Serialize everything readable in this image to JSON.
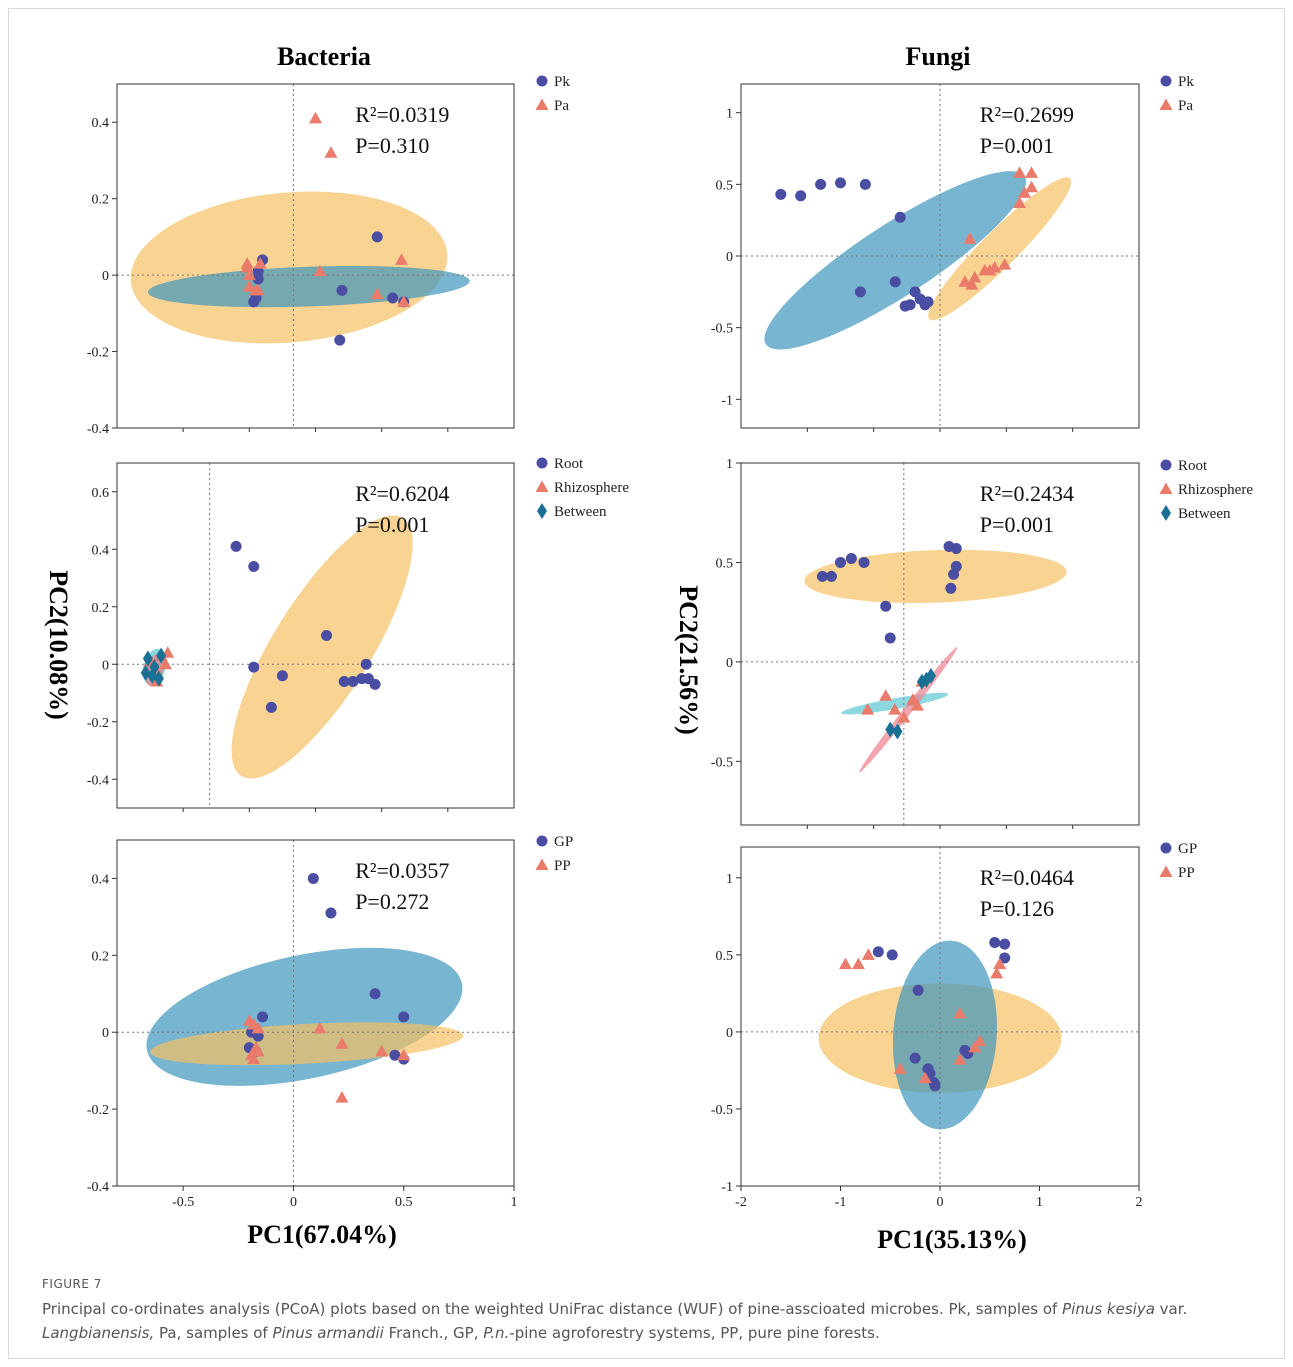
{
  "figure": {
    "col_titles": [
      "Bacteria",
      "Fungi"
    ],
    "y_label": "PC2(10.08%)",
    "y_label_right": "PC2(21.56%)",
    "x_label": "PC1(67.04%)",
    "x_label_right": "PC1(35.13%)",
    "colors": {
      "blue": "#4a4ea2",
      "red": "#ea7a6a",
      "teal": "#1b7095",
      "ell_orange": "#f5c064",
      "ell_blue": "#3f95bd",
      "ell_teal": "#5cc6d2",
      "ell_pink": "#ec7f8c"
    }
  },
  "caption": {
    "label": "FIGURE 7",
    "t1": "Principal co-ordinates analysis (PCoA) plots based on the weighted UniFrac distance (WUF) of pine-asscioated microbes. Pk, samples of ",
    "i1": "Pinus kesiya",
    "t2": " var. ",
    "i2": "Langbianensis,",
    "t3": " Pa, samples of ",
    "i3": "Pinus armandii",
    "t4": " Franch., GP, ",
    "i4": "P.n.",
    "t5": "-pine agroforestry systems, PP, pure pine forests."
  },
  "chart_data": [
    {
      "type": "scatter",
      "title": "Bacteria",
      "stat1": "R²=0.0319",
      "stat2": "P=0.310",
      "xlim": [
        -0.8,
        1.0
      ],
      "ylim": [
        -0.4,
        0.5
      ],
      "xticks": [],
      "yticks": [
        0.4,
        0.2,
        0,
        -0.2,
        -0.4
      ],
      "ytick_labels": [
        "0.4",
        "0.2",
        "0",
        "-0.2",
        "-0.4"
      ],
      "origin_x": 0,
      "series": [
        {
          "name": "Pk",
          "marker": "circle",
          "color": "#4a4ea2",
          "points": [
            [
              -0.14,
              0.04
            ],
            [
              -0.16,
              -0.01
            ],
            [
              -0.17,
              -0.06
            ],
            [
              -0.18,
              -0.07
            ],
            [
              -0.16,
              0.01
            ],
            [
              0.38,
              0.1
            ],
            [
              0.22,
              -0.04
            ],
            [
              0.45,
              -0.06
            ],
            [
              0.21,
              -0.17
            ],
            [
              0.5,
              -0.07
            ]
          ]
        },
        {
          "name": "Pa",
          "marker": "triangle",
          "color": "#ea7a6a",
          "points": [
            [
              0.1,
              0.41
            ],
            [
              0.17,
              0.32
            ],
            [
              -0.21,
              0.03
            ],
            [
              -0.2,
              0.0
            ],
            [
              -0.17,
              -0.04
            ],
            [
              -0.21,
              0.02
            ],
            [
              -0.2,
              -0.03
            ],
            [
              -0.15,
              0.03
            ],
            [
              0.12,
              0.01
            ],
            [
              0.38,
              -0.05
            ],
            [
              0.49,
              0.04
            ],
            [
              0.5,
              -0.07
            ],
            [
              -0.16,
              -0.04
            ]
          ]
        }
      ],
      "ellipses": [
        {
          "color": "#f5c064",
          "cx": -0.02,
          "cy": 0.02,
          "rx": 0.72,
          "ry": 0.34,
          "angle": -5
        },
        {
          "color": "#3f95bd",
          "cx": 0.07,
          "cy": -0.03,
          "rx": 0.73,
          "ry": 0.09,
          "angle": -2
        }
      ]
    },
    {
      "type": "scatter",
      "title": "Fungi",
      "stat1": "R²=0.2699",
      "stat2": "P=0.001",
      "xlim": [
        -2,
        2
      ],
      "ylim": [
        -1.2,
        1.2
      ],
      "xticks": [],
      "yticks": [
        1,
        0.5,
        0,
        -0.5,
        -1
      ],
      "ytick_labels": [
        "1",
        "0.5",
        "0",
        "-0.5",
        "-1"
      ],
      "origin_x": 0,
      "series": [
        {
          "name": "Pk",
          "marker": "circle",
          "color": "#4a4ea2",
          "points": [
            [
              -1.6,
              0.43
            ],
            [
              -1.4,
              0.42
            ],
            [
              -1.2,
              0.5
            ],
            [
              -1.0,
              0.51
            ],
            [
              -0.75,
              0.5
            ],
            [
              -0.4,
              0.27
            ],
            [
              -0.8,
              -0.25
            ],
            [
              -0.45,
              -0.18
            ],
            [
              -0.25,
              -0.25
            ],
            [
              -0.2,
              -0.3
            ],
            [
              -0.3,
              -0.34
            ],
            [
              -0.35,
              -0.35
            ],
            [
              -0.15,
              -0.34
            ],
            [
              -0.12,
              -0.32
            ]
          ]
        },
        {
          "name": "Pa",
          "marker": "triangle",
          "color": "#ea7a6a",
          "points": [
            [
              0.8,
              0.58
            ],
            [
              0.92,
              0.58
            ],
            [
              0.92,
              0.48
            ],
            [
              0.85,
              0.44
            ],
            [
              0.8,
              0.37
            ],
            [
              0.3,
              0.12
            ],
            [
              0.25,
              -0.18
            ],
            [
              0.35,
              -0.15
            ],
            [
              0.45,
              -0.1
            ],
            [
              0.5,
              -0.1
            ],
            [
              0.55,
              -0.08
            ],
            [
              0.65,
              -0.06
            ],
            [
              0.32,
              -0.2
            ]
          ]
        }
      ],
      "ellipses": [
        {
          "color": "#3f95bd",
          "cx": -0.45,
          "cy": -0.03,
          "rx": 1.55,
          "ry": 0.36,
          "angle": -33
        },
        {
          "color": "#f5c064",
          "cx": 0.6,
          "cy": 0.05,
          "rx": 1.0,
          "ry": 0.18,
          "angle": -45
        }
      ]
    },
    {
      "type": "scatter",
      "title": "",
      "stat1": "R²=0.6204",
      "stat2": "P=0.001",
      "xlim": [
        -0.8,
        1.0
      ],
      "ylim": [
        -0.5,
        0.7
      ],
      "xticks": [],
      "yticks": [
        0.6,
        0.4,
        0.2,
        0,
        -0.2,
        -0.4
      ],
      "ytick_labels": [
        "0.6",
        "0.4",
        "0.2",
        "0",
        "-0.2",
        "-0.4"
      ],
      "origin_x": -0.38,
      "series": [
        {
          "name": "Root",
          "marker": "circle",
          "color": "#4a4ea2",
          "points": [
            [
              -0.26,
              0.41
            ],
            [
              -0.18,
              0.34
            ],
            [
              -0.18,
              -0.01
            ],
            [
              -0.05,
              -0.04
            ],
            [
              -0.1,
              -0.15
            ],
            [
              0.15,
              0.1
            ],
            [
              0.23,
              -0.06
            ],
            [
              0.27,
              -0.06
            ],
            [
              0.31,
              -0.05
            ],
            [
              0.34,
              -0.05
            ],
            [
              0.37,
              -0.07
            ],
            [
              0.33,
              0.0
            ]
          ]
        },
        {
          "name": "Rhizosphere",
          "marker": "triangle",
          "color": "#ea7a6a",
          "points": [
            [
              -0.6,
              0.03
            ],
            [
              -0.62,
              -0.03
            ],
            [
              -0.58,
              0.0
            ],
            [
              -0.65,
              0.01
            ],
            [
              -0.62,
              -0.06
            ],
            [
              -0.57,
              0.04
            ]
          ]
        },
        {
          "name": "Between",
          "marker": "diamond",
          "color": "#1b7095",
          "points": [
            [
              -0.66,
              0.02
            ],
            [
              -0.6,
              0.03
            ],
            [
              -0.64,
              -0.04
            ],
            [
              -0.61,
              -0.05
            ],
            [
              -0.63,
              -0.01
            ],
            [
              -0.67,
              -0.03
            ]
          ]
        }
      ],
      "ellipses": [
        {
          "color": "#f5c064",
          "cx": 0.13,
          "cy": 0.06,
          "rx": 0.69,
          "ry": 0.22,
          "angle": -58
        },
        {
          "color": "#5cc6d2",
          "cx": -0.63,
          "cy": -0.01,
          "rx": 0.085,
          "ry": 0.05,
          "angle": -75
        },
        {
          "color": "#ec7f8c",
          "cx": -0.63,
          "cy": -0.02,
          "rx": 0.075,
          "ry": 0.04,
          "angle": -75
        }
      ]
    },
    {
      "type": "scatter",
      "title": "",
      "stat1": "R²=0.2434",
      "stat2": "P=0.001",
      "xlim": [
        -2,
        2.4
      ],
      "ylim": [
        -0.82,
        1.0
      ],
      "xticks": [],
      "yticks": [
        1,
        0.5,
        0,
        -0.5
      ],
      "ytick_labels": [
        "1",
        "0.5",
        "0",
        "-0.5"
      ],
      "origin_x": -0.2,
      "series": [
        {
          "name": "Root",
          "marker": "circle",
          "color": "#4a4ea2",
          "points": [
            [
              -1.1,
              0.43
            ],
            [
              -1.0,
              0.43
            ],
            [
              -0.9,
              0.5
            ],
            [
              -0.78,
              0.52
            ],
            [
              -0.64,
              0.5
            ],
            [
              -0.4,
              0.28
            ],
            [
              -0.35,
              0.12
            ],
            [
              0.3,
              0.58
            ],
            [
              0.38,
              0.57
            ],
            [
              0.38,
              0.48
            ],
            [
              0.35,
              0.44
            ],
            [
              0.32,
              0.37
            ]
          ]
        },
        {
          "name": "Rhizosphere",
          "marker": "triangle",
          "color": "#ea7a6a",
          "points": [
            [
              -0.6,
              -0.24
            ],
            [
              -0.4,
              -0.17
            ],
            [
              -0.3,
              -0.24
            ],
            [
              -0.2,
              -0.28
            ],
            [
              -0.1,
              -0.19
            ],
            [
              0.0,
              -0.1
            ],
            [
              -0.05,
              -0.22
            ]
          ]
        },
        {
          "name": "Between",
          "marker": "diamond",
          "color": "#1b7095",
          "points": [
            [
              0.0,
              -0.1
            ],
            [
              0.05,
              -0.09
            ],
            [
              0.1,
              -0.07
            ],
            [
              -0.35,
              -0.34
            ],
            [
              -0.27,
              -0.35
            ]
          ]
        }
      ],
      "ellipses": [
        {
          "color": "#f5c064",
          "cx": 0.15,
          "cy": 0.43,
          "rx": 1.45,
          "ry": 0.29,
          "angle": -2
        },
        {
          "color": "#5cc6d2",
          "cx": -0.3,
          "cy": -0.21,
          "rx": 0.6,
          "ry": 0.06,
          "angle": -10
        },
        {
          "color": "#ec7f8c",
          "cx": -0.15,
          "cy": -0.24,
          "rx": 0.88,
          "ry": 0.045,
          "angle": -52
        }
      ]
    },
    {
      "type": "scatter",
      "title": "",
      "stat1": "R²=0.0357",
      "stat2": "P=0.272",
      "xlim": [
        -0.8,
        1.0
      ],
      "ylim": [
        -0.4,
        0.5
      ],
      "xticks": [
        -0.5,
        0,
        0.5,
        1
      ],
      "xtick_labels": [
        "-0.5",
        "0",
        "0.5",
        "1"
      ],
      "yticks": [
        0.4,
        0.2,
        0,
        -0.2,
        -0.4
      ],
      "ytick_labels": [
        "0.4",
        "0.2",
        "0",
        "-0.2",
        "-0.4"
      ],
      "origin_x": 0,
      "series": [
        {
          "name": "GP",
          "marker": "circle",
          "color": "#4a4ea2",
          "points": [
            [
              0.09,
              0.4
            ],
            [
              0.17,
              0.31
            ],
            [
              0.37,
              0.1
            ],
            [
              0.5,
              0.04
            ],
            [
              -0.14,
              0.04
            ],
            [
              -0.2,
              -0.04
            ],
            [
              -0.16,
              -0.01
            ],
            [
              -0.17,
              -0.05
            ],
            [
              -0.19,
              0.0
            ],
            [
              0.46,
              -0.06
            ],
            [
              0.5,
              -0.07
            ]
          ]
        },
        {
          "name": "PP",
          "marker": "triangle",
          "color": "#ea7a6a",
          "points": [
            [
              -0.2,
              0.03
            ],
            [
              -0.18,
              0.02
            ],
            [
              -0.16,
              0.01
            ],
            [
              -0.17,
              -0.04
            ],
            [
              -0.19,
              -0.06
            ],
            [
              -0.18,
              -0.07
            ],
            [
              0.12,
              0.01
            ],
            [
              0.22,
              -0.03
            ],
            [
              0.4,
              -0.05
            ],
            [
              0.5,
              -0.06
            ],
            [
              0.22,
              -0.17
            ],
            [
              -0.16,
              -0.05
            ]
          ]
        }
      ],
      "ellipses": [
        {
          "color": "#3f95bd",
          "cx": 0.05,
          "cy": 0.04,
          "rx": 0.73,
          "ry": 0.28,
          "angle": -12
        },
        {
          "color": "#f5c064",
          "cx": 0.06,
          "cy": -0.03,
          "rx": 0.71,
          "ry": 0.09,
          "angle": -3
        }
      ]
    },
    {
      "type": "scatter",
      "title": "",
      "stat1": "R²=0.0464",
      "stat2": "P=0.126",
      "xlim": [
        -2,
        2
      ],
      "ylim": [
        -1.0,
        1.2
      ],
      "xticks": [
        -2,
        -1,
        0,
        1,
        2
      ],
      "xtick_labels": [
        "-2",
        "-1",
        "0",
        "1",
        "2"
      ],
      "yticks": [
        1,
        0.5,
        0,
        -0.5,
        -1
      ],
      "ytick_labels": [
        "1",
        "0.5",
        "0",
        "-0.5",
        "-1"
      ],
      "origin_x": 0,
      "series": [
        {
          "name": "GP",
          "marker": "circle",
          "color": "#4a4ea2",
          "points": [
            [
              -0.62,
              0.52
            ],
            [
              -0.48,
              0.5
            ],
            [
              -0.22,
              0.27
            ],
            [
              0.55,
              0.58
            ],
            [
              0.65,
              0.57
            ],
            [
              0.65,
              0.48
            ],
            [
              -0.25,
              -0.17
            ],
            [
              -0.12,
              -0.24
            ],
            [
              -0.1,
              -0.27
            ],
            [
              -0.06,
              -0.33
            ],
            [
              0.28,
              -0.14
            ],
            [
              0.25,
              -0.12
            ],
            [
              -0.05,
              -0.35
            ]
          ]
        },
        {
          "name": "PP",
          "marker": "triangle",
          "color": "#ea7a6a",
          "points": [
            [
              -0.95,
              0.44
            ],
            [
              -0.82,
              0.44
            ],
            [
              -0.72,
              0.5
            ],
            [
              0.6,
              0.44
            ],
            [
              0.57,
              0.38
            ],
            [
              0.2,
              0.12
            ],
            [
              0.4,
              -0.06
            ],
            [
              -0.4,
              -0.24
            ],
            [
              -0.15,
              -0.3
            ],
            [
              0.2,
              -0.18
            ],
            [
              0.35,
              -0.1
            ]
          ]
        }
      ],
      "ellipses": [
        {
          "color": "#f5c064",
          "cx": 0.0,
          "cy": -0.04,
          "rx": 1.22,
          "ry": 0.55,
          "angle": 0
        },
        {
          "color": "#3f95bd",
          "cx": 0.05,
          "cy": -0.02,
          "rx": 0.95,
          "ry": 0.52,
          "angle": -86
        }
      ]
    }
  ]
}
